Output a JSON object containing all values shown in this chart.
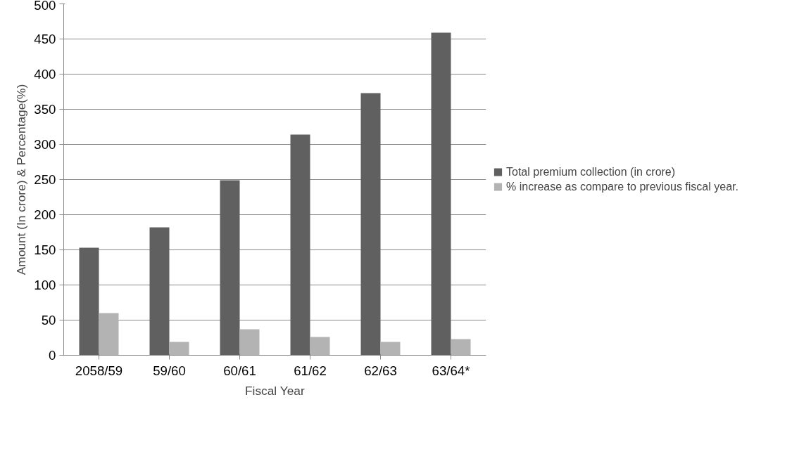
{
  "chart_data": {
    "type": "bar",
    "xlabel": "Fiscal Year",
    "ylabel": "Amount (In crore) & Percentage(%)",
    "categories": [
      "2058/59",
      "59/60",
      "60/61",
      "61/62",
      "62/63",
      "63/64*"
    ],
    "series": [
      {
        "name": "Total premium collection (in crore)",
        "color": "#606060",
        "values": [
          153,
          182,
          249,
          314,
          373,
          459
        ]
      },
      {
        "name": "% increase as compare to previous fiscal year.",
        "color": "#b3b3b3",
        "values": [
          60,
          19,
          37,
          26,
          19,
          23
        ]
      }
    ],
    "ylim": [
      0,
      500
    ],
    "yticks": [
      0,
      50,
      100,
      150,
      200,
      250,
      300,
      350,
      400,
      450,
      500
    ],
    "grid": "y",
    "legend": "right"
  }
}
